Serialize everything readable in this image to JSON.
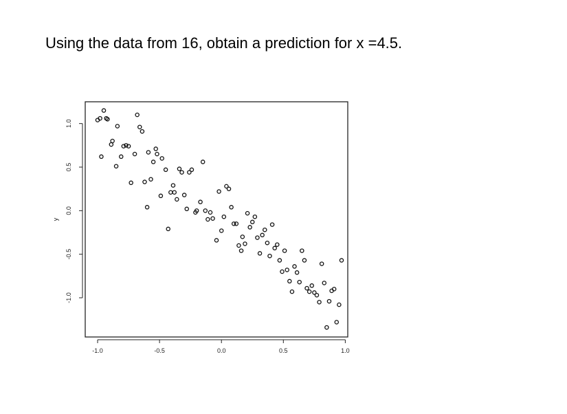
{
  "question": "Using the data from 16, obtain a prediction for x =4.5.",
  "chart_data": {
    "type": "scatter",
    "title": "",
    "xlabel": "",
    "ylabel": "y",
    "xlim": [
      -1.1,
      1.02
    ],
    "ylim": [
      -1.45,
      1.25
    ],
    "xticks": [
      "-1.0",
      "-0.5",
      "0.0",
      "0.5",
      "1.0"
    ],
    "yticks": [
      "-1.0",
      "-0.5",
      "0.0",
      "0.5",
      "1.0"
    ],
    "marker": "open-circle",
    "points": [
      [
        -1.0,
        1.04
      ],
      [
        -0.98,
        1.06
      ],
      [
        -0.95,
        1.15
      ],
      [
        -0.93,
        1.06
      ],
      [
        -0.92,
        1.05
      ],
      [
        -0.97,
        0.62
      ],
      [
        -0.89,
        0.76
      ],
      [
        -0.88,
        0.8
      ],
      [
        -0.85,
        0.51
      ],
      [
        -0.84,
        0.97
      ],
      [
        -0.81,
        0.62
      ],
      [
        -0.79,
        0.74
      ],
      [
        -0.77,
        0.75
      ],
      [
        -0.75,
        0.74
      ],
      [
        -0.73,
        0.32
      ],
      [
        -0.7,
        0.65
      ],
      [
        -0.68,
        1.1
      ],
      [
        -0.66,
        0.96
      ],
      [
        -0.64,
        0.91
      ],
      [
        -0.62,
        0.33
      ],
      [
        -0.6,
        0.04
      ],
      [
        -0.59,
        0.67
      ],
      [
        -0.57,
        0.36
      ],
      [
        -0.55,
        0.56
      ],
      [
        -0.53,
        0.71
      ],
      [
        -0.52,
        0.65
      ],
      [
        -0.49,
        0.17
      ],
      [
        -0.48,
        0.6
      ],
      [
        -0.45,
        0.47
      ],
      [
        -0.43,
        -0.21
      ],
      [
        -0.41,
        0.21
      ],
      [
        -0.39,
        0.29
      ],
      [
        -0.38,
        0.21
      ],
      [
        -0.36,
        0.13
      ],
      [
        -0.34,
        0.48
      ],
      [
        -0.32,
        0.44
      ],
      [
        -0.3,
        0.18
      ],
      [
        -0.28,
        0.02
      ],
      [
        -0.26,
        0.44
      ],
      [
        -0.24,
        0.47
      ],
      [
        -0.21,
        -0.02
      ],
      [
        -0.2,
        0.0
      ],
      [
        -0.17,
        0.1
      ],
      [
        -0.15,
        0.56
      ],
      [
        -0.13,
        0.0
      ],
      [
        -0.11,
        -0.1
      ],
      [
        -0.09,
        -0.02
      ],
      [
        -0.07,
        -0.09
      ],
      [
        -0.04,
        -0.34
      ],
      [
        -0.02,
        0.22
      ],
      [
        -0.0,
        -0.23
      ],
      [
        0.02,
        -0.07
      ],
      [
        0.04,
        0.28
      ],
      [
        0.06,
        0.25
      ],
      [
        0.08,
        0.04
      ],
      [
        0.1,
        -0.15
      ],
      [
        0.12,
        -0.15
      ],
      [
        0.14,
        -0.4
      ],
      [
        0.16,
        -0.46
      ],
      [
        0.17,
        -0.3
      ],
      [
        0.19,
        -0.38
      ],
      [
        0.21,
        -0.03
      ],
      [
        0.23,
        -0.19
      ],
      [
        0.25,
        -0.13
      ],
      [
        0.27,
        -0.07
      ],
      [
        0.29,
        -0.31
      ],
      [
        0.31,
        -0.49
      ],
      [
        0.33,
        -0.28
      ],
      [
        0.35,
        -0.22
      ],
      [
        0.37,
        -0.37
      ],
      [
        0.39,
        -0.52
      ],
      [
        0.41,
        -0.16
      ],
      [
        0.43,
        -0.43
      ],
      [
        0.45,
        -0.39
      ],
      [
        0.47,
        -0.57
      ],
      [
        0.49,
        -0.7
      ],
      [
        0.51,
        -0.46
      ],
      [
        0.53,
        -0.68
      ],
      [
        0.55,
        -0.81
      ],
      [
        0.57,
        -0.93
      ],
      [
        0.59,
        -0.64
      ],
      [
        0.61,
        -0.71
      ],
      [
        0.63,
        -0.82
      ],
      [
        0.65,
        -0.46
      ],
      [
        0.67,
        -0.57
      ],
      [
        0.69,
        -0.89
      ],
      [
        0.71,
        -0.93
      ],
      [
        0.73,
        -0.86
      ],
      [
        0.75,
        -0.94
      ],
      [
        0.77,
        -0.97
      ],
      [
        0.79,
        -1.05
      ],
      [
        0.81,
        -0.61
      ],
      [
        0.83,
        -0.83
      ],
      [
        0.85,
        -1.34
      ],
      [
        0.87,
        -1.04
      ],
      [
        0.89,
        -0.92
      ],
      [
        0.91,
        -0.9
      ],
      [
        0.93,
        -1.28
      ],
      [
        0.95,
        -1.08
      ],
      [
        0.97,
        -0.57
      ]
    ]
  }
}
